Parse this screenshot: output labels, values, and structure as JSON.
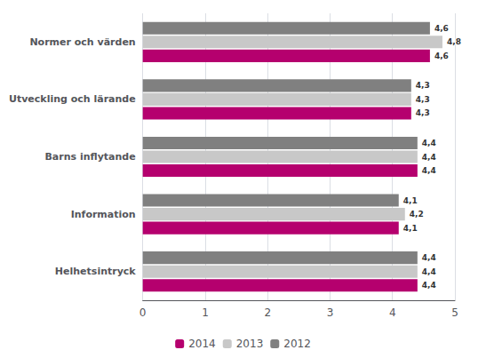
{
  "chart_data": {
    "type": "bar",
    "orientation": "horizontal",
    "categories": [
      "Helhetsintryck",
      "Information",
      "Barns inflytande",
      "Utveckling och lärande",
      "Normer och värden"
    ],
    "series": [
      {
        "name": "2014",
        "color": "#b5006e",
        "values": [
          4.4,
          4.1,
          4.4,
          4.3,
          4.6
        ],
        "value_labels": [
          "4,4",
          "4,1",
          "4,4",
          "4,3",
          "4,6"
        ]
      },
      {
        "name": "2013",
        "color": "#c8c8c8",
        "values": [
          4.4,
          4.2,
          4.4,
          4.3,
          4.8
        ],
        "value_labels": [
          "4,4",
          "4,2",
          "4,4",
          "4,3",
          "4,8"
        ]
      },
      {
        "name": "2012",
        "color": "#808080",
        "values": [
          4.4,
          4.1,
          4.4,
          4.3,
          4.6
        ],
        "value_labels": [
          "4,4",
          "4,1",
          "4,4",
          "4,3",
          "4,6"
        ]
      }
    ],
    "xlim": [
      0,
      5
    ],
    "xticks": [
      0,
      1,
      2,
      3,
      4,
      5
    ],
    "grid": true,
    "legend": "bottom",
    "data_labels": true
  }
}
